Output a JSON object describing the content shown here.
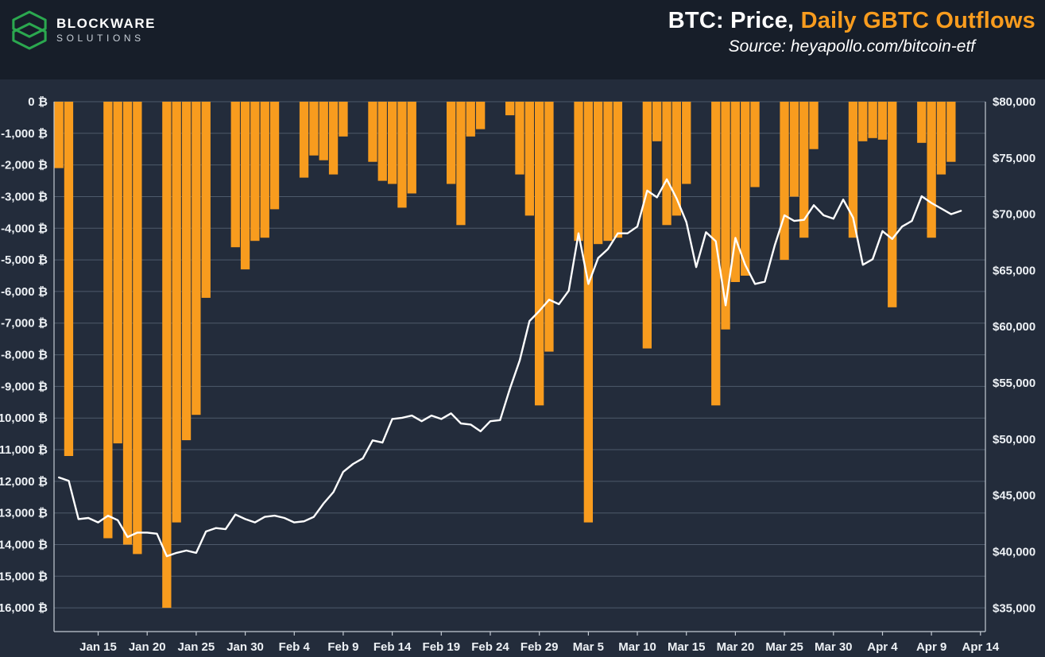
{
  "header": {
    "logo": {
      "line1": "BLOCKWARE",
      "line2": "SOLUTIONS"
    },
    "title_white": "BTC: Price, ",
    "title_orange": "Daily GBTC Outflows",
    "source": "Source: heyapollo.com/bitcoin-etf"
  },
  "colors": {
    "background": "#232C3B",
    "header_background": "#171E29",
    "accent_orange": "#F89C1E",
    "price_line": "#FFFFFF",
    "grid": "#4E5A6B",
    "spine": "#C3CAD3",
    "axis_text": "#EDF1F5",
    "logo_green": "#2BA84F"
  },
  "chart_data": {
    "type": "bar+line",
    "title": "BTC: Price, Daily GBTC Outflows",
    "source": "Source: heyapollo.com/bitcoin-etf",
    "grid": true,
    "legend": false,
    "x": [
      "Jan 11",
      "Jan 12",
      "Jan 13",
      "Jan 14",
      "Jan 15",
      "Jan 16",
      "Jan 17",
      "Jan 18",
      "Jan 19",
      "Jan 20",
      "Jan 21",
      "Jan 22",
      "Jan 23",
      "Jan 24",
      "Jan 25",
      "Jan 26",
      "Jan 27",
      "Jan 28",
      "Jan 29",
      "Jan 30",
      "Jan 31",
      "Feb 1",
      "Feb 2",
      "Feb 3",
      "Feb 4",
      "Feb 5",
      "Feb 6",
      "Feb 7",
      "Feb 8",
      "Feb 9",
      "Feb 10",
      "Feb 11",
      "Feb 12",
      "Feb 13",
      "Feb 14",
      "Feb 15",
      "Feb 16",
      "Feb 17",
      "Feb 18",
      "Feb 19",
      "Feb 20",
      "Feb 21",
      "Feb 22",
      "Feb 23",
      "Feb 24",
      "Feb 25",
      "Feb 26",
      "Feb 27",
      "Feb 28",
      "Feb 29",
      "Mar 1",
      "Mar 2",
      "Mar 3",
      "Mar 4",
      "Mar 5",
      "Mar 6",
      "Mar 7",
      "Mar 8",
      "Mar 9",
      "Mar 10",
      "Mar 11",
      "Mar 12",
      "Mar 13",
      "Mar 14",
      "Mar 15",
      "Mar 16",
      "Mar 17",
      "Mar 18",
      "Mar 19",
      "Mar 20",
      "Mar 21",
      "Mar 22",
      "Mar 23",
      "Mar 24",
      "Mar 25",
      "Mar 26",
      "Mar 27",
      "Mar 28",
      "Mar 29",
      "Mar 30",
      "Mar 31",
      "Apr 1",
      "Apr 2",
      "Apr 3",
      "Apr 4",
      "Apr 5",
      "Apr 6",
      "Apr 7",
      "Apr 8",
      "Apr 9",
      "Apr 10",
      "Apr 11",
      "Apr 12",
      "Apr 13",
      "Apr 14"
    ],
    "x_tick_labels": [
      "Jan 15",
      "Jan 20",
      "Jan 25",
      "Jan 30",
      "Feb 4",
      "Feb 9",
      "Feb 14",
      "Feb 19",
      "Feb 24",
      "Feb 29",
      "Mar 5",
      "Mar 10",
      "Mar 15",
      "Mar 20",
      "Mar 25",
      "Mar 30",
      "Apr 4",
      "Apr 9",
      "Apr 14"
    ],
    "x_tick_indices": [
      4,
      9,
      14,
      19,
      24,
      29,
      34,
      39,
      44,
      49,
      54,
      59,
      64,
      69,
      74,
      79,
      84,
      89,
      94
    ],
    "left_axis": {
      "name": "Daily GBTC Outflows (BTC)",
      "max": 0,
      "min": -16750,
      "ticks": [
        0,
        -1000,
        -2000,
        -3000,
        -4000,
        -5000,
        -6000,
        -7000,
        -8000,
        -9000,
        -10000,
        -11000,
        -12000,
        -13000,
        -14000,
        -15000,
        -16000
      ],
      "tick_labels": [
        "0 ₿",
        "-1,000 ₿",
        "-2,000 ₿",
        "-3,000 ₿",
        "-4,000 ₿",
        "-5,000 ₿",
        "-6,000 ₿",
        "-7,000 ₿",
        "-8,000 ₿",
        "-9,000 ₿",
        "-10,000 ₿",
        "-11,000 ₿",
        "-12,000 ₿",
        "-13,000 ₿",
        "-14,000 ₿",
        "-15,000 ₿",
        "-16,000 ₿"
      ]
    },
    "right_axis": {
      "name": "BTC Price (USD)",
      "max": 80000,
      "min": 32900,
      "ticks": [
        80000,
        75000,
        70000,
        65000,
        60000,
        55000,
        50000,
        45000,
        40000,
        35000
      ],
      "tick_labels": [
        "$80,000",
        "$75,000",
        "$70,000",
        "$65,000",
        "$60,000",
        "$55,000",
        "$50,000",
        "$45,000",
        "$40,000",
        "$35,000"
      ]
    },
    "series": [
      {
        "name": "Daily GBTC Outflows",
        "type": "bar",
        "axis": "left",
        "color": "#F89C1E",
        "values": [
          -2100,
          -11200,
          null,
          null,
          null,
          -13800,
          -10800,
          -14000,
          -14300,
          null,
          null,
          -16000,
          -13300,
          -10700,
          -9900,
          -6200,
          null,
          null,
          -4600,
          -5300,
          -4400,
          -4300,
          -3400,
          null,
          null,
          -2400,
          -1700,
          -1850,
          -2300,
          -1100,
          null,
          null,
          -1900,
          -2500,
          -2600,
          -3350,
          -2900,
          null,
          null,
          null,
          -2600,
          -3900,
          -1100,
          -870,
          null,
          null,
          -430,
          -2300,
          -3600,
          -9600,
          -7900,
          null,
          null,
          -4400,
          -13300,
          -4500,
          -4400,
          -4300,
          null,
          null,
          -7800,
          -1250,
          -3900,
          -3600,
          -2600,
          null,
          null,
          -9600,
          -7200,
          -5700,
          -5500,
          -2700,
          null,
          null,
          -5000,
          -3000,
          -4300,
          -1500,
          null,
          null,
          null,
          -4300,
          -1250,
          -1150,
          -1200,
          -6500,
          null,
          null,
          -1300,
          -4300,
          -2300,
          -1900,
          null,
          null,
          null
        ]
      },
      {
        "name": "BTC Price",
        "type": "line",
        "axis": "right",
        "color": "#FFFFFF",
        "values": [
          46600,
          46300,
          42900,
          43000,
          42600,
          43200,
          42800,
          41300,
          41700,
          41700,
          41600,
          39600,
          39900,
          40100,
          39900,
          41800,
          42100,
          42000,
          43300,
          42900,
          42600,
          43100,
          43200,
          43000,
          42600,
          42700,
          43100,
          44300,
          45300,
          47100,
          47800,
          48300,
          49900,
          49700,
          51800,
          51900,
          52100,
          51600,
          52100,
          51800,
          52300,
          51400,
          51300,
          50700,
          51600,
          51700,
          54500,
          57000,
          60500,
          61400,
          62400,
          62000,
          63200,
          68300,
          63800,
          66100,
          66900,
          68300,
          68300,
          68900,
          72100,
          71500,
          73100,
          71400,
          69300,
          65300,
          68400,
          67600,
          61900,
          67900,
          65500,
          63800,
          64000,
          67200,
          69900,
          69400,
          69500,
          70800,
          69900,
          69600,
          71300,
          69700,
          65500,
          66000,
          68500,
          67800,
          68900,
          69400,
          71600,
          71000,
          70500,
          70000,
          70300,
          null,
          null
        ]
      }
    ]
  }
}
